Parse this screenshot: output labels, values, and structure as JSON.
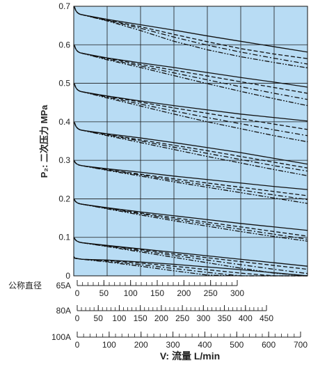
{
  "chart_data": {
    "type": "line",
    "ylabel": "P₂: 二次压力 MPa",
    "xlabel": "V: 流量 L/min",
    "ylim": [
      0,
      0.7
    ],
    "yticks": [
      0,
      0.1,
      0.2,
      0.3,
      0.4,
      0.5,
      0.6,
      0.7
    ],
    "ytick_labels": [
      "0",
      "0.1",
      "0.2",
      "0.3",
      "0.4",
      "0.5",
      "0.6",
      "0.7"
    ],
    "grid": true,
    "plot_background": "#b8dcf4",
    "line_color": "#111111",
    "series_styles": [
      "solid",
      "dashed",
      "dash-dot",
      "dash-dot-dot"
    ],
    "x_scales": [
      {
        "label_prefix": "公称直径",
        "label": "65A",
        "max": 300,
        "ticks": [
          0,
          50,
          100,
          150,
          200,
          250,
          300
        ],
        "tick_labels": [
          "0",
          "50",
          "100",
          "150",
          "200",
          "250",
          "300"
        ]
      },
      {
        "label_prefix": "",
        "label": "80A",
        "max": 450,
        "ticks": [
          0,
          50,
          100,
          150,
          200,
          250,
          300,
          350,
          400,
          450
        ],
        "tick_labels": [
          "0",
          "50",
          "100",
          "150",
          "200",
          "250",
          "300",
          "350",
          "400",
          "450"
        ]
      },
      {
        "label_prefix": "",
        "label": "100A",
        "max": 700,
        "ticks": [
          0,
          100,
          200,
          300,
          400,
          500,
          600,
          700
        ],
        "tick_labels": [
          "0",
          "100",
          "200",
          "300",
          "400",
          "500",
          "600",
          "700"
        ]
      }
    ],
    "x_100A": [
      0,
      100,
      200,
      300,
      400,
      500,
      600,
      700
    ],
    "curve_groups": [
      {
        "set_pressure": 0.7,
        "series": [
          [
            0.68,
            0.666,
            0.652,
            0.638,
            0.623,
            0.609,
            0.595,
            0.581
          ],
          [
            0.68,
            0.664,
            0.647,
            0.627,
            0.608,
            0.59,
            0.576,
            0.564
          ],
          [
            0.68,
            0.663,
            0.643,
            0.62,
            0.599,
            0.581,
            0.565,
            0.55
          ],
          [
            0.68,
            0.662,
            0.637,
            0.609,
            0.587,
            0.569,
            0.554,
            0.54
          ]
        ]
      },
      {
        "set_pressure": 0.6,
        "series": [
          [
            0.58,
            0.566,
            0.553,
            0.541,
            0.528,
            0.515,
            0.503,
            0.49
          ],
          [
            0.58,
            0.565,
            0.549,
            0.534,
            0.519,
            0.504,
            0.489,
            0.474
          ],
          [
            0.58,
            0.563,
            0.545,
            0.527,
            0.509,
            0.491,
            0.474,
            0.458
          ],
          [
            0.58,
            0.561,
            0.541,
            0.52,
            0.499,
            0.479,
            0.46,
            0.442
          ]
        ]
      },
      {
        "set_pressure": 0.5,
        "series": [
          [
            0.48,
            0.467,
            0.454,
            0.442,
            0.431,
            0.42,
            0.411,
            0.402
          ],
          [
            0.48,
            0.466,
            0.451,
            0.436,
            0.422,
            0.408,
            0.394,
            0.38
          ],
          [
            0.48,
            0.464,
            0.446,
            0.428,
            0.411,
            0.395,
            0.379,
            0.364
          ],
          [
            0.48,
            0.462,
            0.441,
            0.42,
            0.4,
            0.382,
            0.364,
            0.348
          ]
        ]
      },
      {
        "set_pressure": 0.4,
        "series": [
          [
            0.38,
            0.369,
            0.358,
            0.346,
            0.333,
            0.32,
            0.305,
            0.29
          ],
          [
            0.38,
            0.367,
            0.353,
            0.339,
            0.325,
            0.31,
            0.295,
            0.28
          ],
          [
            0.38,
            0.366,
            0.35,
            0.334,
            0.318,
            0.302,
            0.286,
            0.272
          ],
          [
            0.38,
            0.364,
            0.346,
            0.328,
            0.31,
            0.293,
            0.276,
            0.26
          ]
        ]
      },
      {
        "set_pressure": 0.3,
        "series": [
          [
            0.288,
            0.278,
            0.269,
            0.259,
            0.25,
            0.241,
            0.232,
            0.224
          ],
          [
            0.288,
            0.276,
            0.264,
            0.252,
            0.241,
            0.23,
            0.219,
            0.208
          ],
          [
            0.288,
            0.275,
            0.262,
            0.248,
            0.235,
            0.223,
            0.21,
            0.198
          ],
          [
            0.288,
            0.274,
            0.259,
            0.244,
            0.23,
            0.216,
            0.202,
            0.188
          ]
        ]
      },
      {
        "set_pressure": 0.2,
        "series": [
          [
            0.188,
            0.177,
            0.166,
            0.156,
            0.146,
            0.136,
            0.127,
            0.118
          ],
          [
            0.188,
            0.176,
            0.163,
            0.151,
            0.139,
            0.127,
            0.115,
            0.103
          ],
          [
            0.188,
            0.175,
            0.161,
            0.147,
            0.134,
            0.121,
            0.108,
            0.095
          ],
          [
            0.188,
            0.174,
            0.158,
            0.143,
            0.129,
            0.115,
            0.102,
            0.09
          ]
        ]
      },
      {
        "set_pressure": 0.1,
        "series": [
          [
            0.088,
            0.079,
            0.07,
            0.061,
            0.052,
            0.043,
            0.034,
            0.025
          ],
          [
            0.088,
            0.078,
            0.068,
            0.057,
            0.047,
            0.037,
            0.027,
            0.017
          ],
          [
            0.088,
            0.077,
            0.065,
            0.053,
            0.041,
            0.029,
            0.017,
            0.006
          ],
          [
            0.088,
            0.076,
            0.062,
            0.048,
            0.034,
            0.02,
            0.007,
            0.0
          ]
        ]
      },
      {
        "set_pressure": 0.05,
        "series": [
          [
            0.045,
            0.041,
            0.036,
            0.03,
            0.023,
            0.016,
            0.008,
            0.0
          ],
          [
            0.045,
            0.04,
            0.033,
            0.025,
            0.016,
            0.007,
            0.0,
            0.0
          ],
          [
            0.045,
            0.038,
            0.029,
            0.019,
            0.009,
            0.0,
            0.0,
            0.0
          ],
          [
            0.045,
            0.036,
            0.025,
            0.013,
            0.002,
            0.0,
            0.0,
            0.0
          ]
        ]
      }
    ]
  }
}
